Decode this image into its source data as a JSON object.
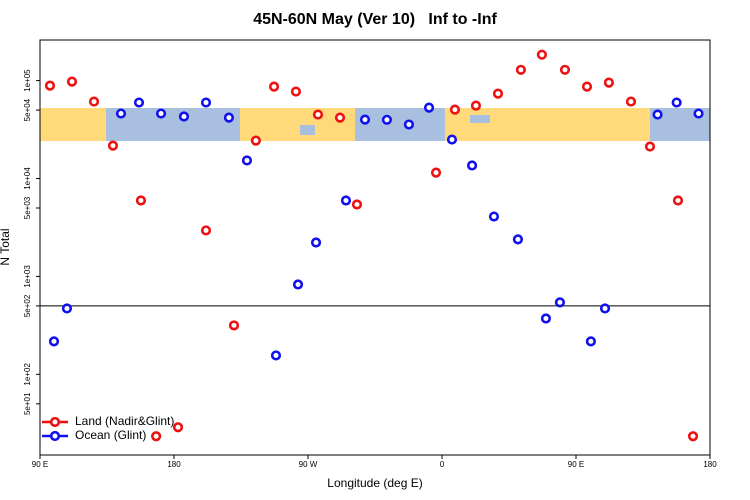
{
  "chart_data": {
    "type": "scatter",
    "title": "45N-60N May (Ver 10)   Inf to -Inf",
    "xlabel": "Longitude (deg E)",
    "ylabel": "N Total",
    "xlim": [
      90,
      540
    ],
    "ylim": [
      15,
      260000
    ],
    "log_y": true,
    "hline": 500,
    "legend": "lower left",
    "xticks": [
      {
        "value": 90,
        "label": "90 E"
      },
      180,
      {
        "value": 270,
        "label": "90 W"
      },
      {
        "value": 360,
        "label": "0"
      },
      {
        "value": 450,
        "label": "90 E"
      },
      {
        "value": 540,
        "label": "180"
      }
    ],
    "yticks": [
      {
        "value": 50,
        "label": "5e+01"
      },
      {
        "value": 100,
        "label": "1e+02"
      },
      {
        "value": 500,
        "label": "5e+02"
      },
      {
        "value": 1000,
        "label": "1e+03"
      },
      {
        "value": 5000,
        "label": "5e+03"
      },
      {
        "value": 10000,
        "label": "1e+04"
      },
      {
        "value": 50000,
        "label": "5e+04"
      },
      {
        "value": 100000,
        "label": "1e+05"
      }
    ],
    "series": [
      {
        "name": "Land (Nadir&Glint)",
        "color": "#ee1111",
        "x": [
          96.7,
          111.5,
          126.3,
          139,
          157.8,
          182.7,
          168,
          201.5,
          220.3,
          235,
          247.2,
          261.9,
          276.7,
          291.5,
          302.9,
          356,
          368.7,
          382.8,
          397.6,
          413,
          427.1,
          442.6,
          457.4,
          472.1,
          486.9,
          499.7,
          518.5,
          528.6
        ],
        "values": [
          88900,
          97700,
          61100,
          21700,
          5970,
          28.8,
          23.3,
          2950,
          316,
          24400,
          86900,
          77300,
          45000,
          41900,
          5430,
          11500,
          50600,
          55600,
          73700,
          129000,
          184000,
          129000,
          86900,
          95400,
          61100,
          21200,
          5970,
          23.3
        ]
      },
      {
        "name": "Ocean (Glint)",
        "color": "#1111ee",
        "x": [
          99.4,
          108.1,
          144.4,
          156.5,
          171.3,
          186.7,
          201.5,
          216.9,
          229,
          248.5,
          263.3,
          275.4,
          295.5,
          308.3,
          323,
          337.8,
          351.3,
          366.7,
          380.2,
          394.9,
          411,
          429.8,
          439.2,
          460,
          469.5,
          504.8,
          517.6,
          532.3
        ],
        "values": [
          217,
          471,
          46100,
          59700,
          46100,
          43000,
          59700,
          41900,
          15300,
          156,
          828,
          2220,
          5970,
          40000,
          39800,
          35600,
          53000,
          25000,
          13600,
          4090,
          2390,
          372,
          543,
          217,
          471,
          45000,
          59700,
          46100
        ]
      }
    ]
  }
}
